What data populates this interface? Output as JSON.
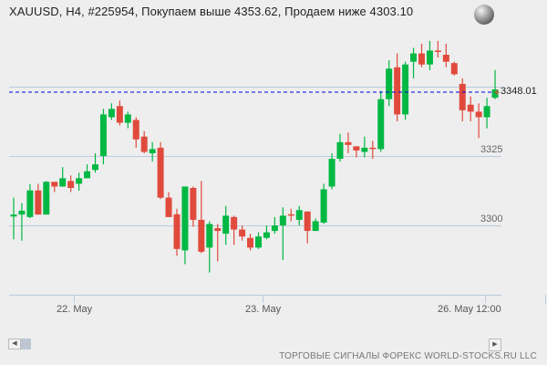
{
  "header": {
    "title": "XAUUSD, H4, #225954, Покупаем выше 4353.62, Продаем ниже 4303.10",
    "globe_icon": "globe-icon"
  },
  "y_axis": {
    "labels": [
      {
        "text": "3325",
        "value": 3325
      },
      {
        "text": "3300",
        "value": 3300
      }
    ]
  },
  "x_axis": {
    "labels": [
      {
        "text": "22. May"
      },
      {
        "text": "23. May"
      },
      {
        "text": "26. May 12:00"
      }
    ]
  },
  "current_price": {
    "text": "3348.01",
    "value": 3348.01
  },
  "footer": {
    "text": "ТОРГОВЫЕ СИГНАЛЫ ФОРЕКС WORLD-STOCKS.RU LLC"
  },
  "scrollbar": {
    "left_icon": "scroll-left-icon",
    "right_icon": "scroll-right-icon"
  },
  "colors": {
    "up": "#00b843",
    "down": "#e04a3c",
    "grid": "#bccbdb",
    "price_line": "#0000dd"
  },
  "chart_data": {
    "type": "candlestick",
    "title": "XAUUSD, H4, #225954, Покупаем выше 4353.62, Продаем ниже 4303.10",
    "xlabel": "",
    "ylabel": "",
    "ylim": [
      3275,
      3357
    ],
    "grid": true,
    "y_ticks": [
      3300,
      3325,
      3350
    ],
    "x_ticks": [
      "22. May",
      "23. May",
      "26. May 12:00"
    ],
    "current_price": 3348.01,
    "candles": [
      {
        "o": 3303.2,
        "c": 3303.9,
        "h": 3310.0,
        "l": 3295.0
      },
      {
        "o": 3303.9,
        "c": 3305.3,
        "h": 3308.0,
        "l": 3294.5
      },
      {
        "o": 3303.0,
        "c": 3312.6,
        "h": 3314.9,
        "l": 3302.6
      },
      {
        "o": 3312.6,
        "c": 3303.9,
        "h": 3315.0,
        "l": 3303.9
      },
      {
        "o": 3303.9,
        "c": 3315.7,
        "h": 3316.0,
        "l": 3303.9
      },
      {
        "o": 3315.7,
        "c": 3314.0,
        "h": 3315.7,
        "l": 3312.0
      },
      {
        "o": 3314.0,
        "c": 3317.0,
        "h": 3321.0,
        "l": 3314.0
      },
      {
        "o": 3316.0,
        "c": 3313.5,
        "h": 3318.0,
        "l": 3312.0
      },
      {
        "o": 3315.0,
        "c": 3317.0,
        "h": 3319.0,
        "l": 3312.5
      },
      {
        "o": 3317.0,
        "c": 3319.5,
        "h": 3322.0,
        "l": 3317.0
      },
      {
        "o": 3320.0,
        "c": 3322.0,
        "h": 3326.0,
        "l": 3319.0
      },
      {
        "o": 3325.0,
        "c": 3340.0,
        "h": 3342.0,
        "l": 3322.0
      },
      {
        "o": 3339.0,
        "c": 3342.0,
        "h": 3344.0,
        "l": 3338.0
      },
      {
        "o": 3343.0,
        "c": 3337.0,
        "h": 3345.0,
        "l": 3336.0
      },
      {
        "o": 3337.0,
        "c": 3340.0,
        "h": 3341.0,
        "l": 3335.0
      },
      {
        "o": 3338.0,
        "c": 3331.0,
        "h": 3339.0,
        "l": 3328.0
      },
      {
        "o": 3332.0,
        "c": 3326.5,
        "h": 3334.0,
        "l": 3326.0
      },
      {
        "o": 3326.0,
        "c": 3327.5,
        "h": 3330.0,
        "l": 3323.0
      },
      {
        "o": 3328.0,
        "c": 3310.0,
        "h": 3330.0,
        "l": 3309.5
      },
      {
        "o": 3310.0,
        "c": 3303.0,
        "h": 3312.0,
        "l": 3303.0
      },
      {
        "o": 3304.0,
        "c": 3291.5,
        "h": 3306.0,
        "l": 3289.0
      },
      {
        "o": 3291.0,
        "c": 3314.0,
        "h": 3314.0,
        "l": 3286.0
      },
      {
        "o": 3313.5,
        "c": 3302.0,
        "h": 3314.0,
        "l": 3299.5
      },
      {
        "o": 3302.0,
        "c": 3290.5,
        "h": 3316.0,
        "l": 3290.0
      },
      {
        "o": 3292.0,
        "c": 3300.5,
        "h": 3301.5,
        "l": 3283.0
      },
      {
        "o": 3299.0,
        "c": 3298.0,
        "h": 3300.5,
        "l": 3287.0
      },
      {
        "o": 3297.0,
        "c": 3303.5,
        "h": 3307.0,
        "l": 3293.0
      },
      {
        "o": 3303.0,
        "c": 3298.5,
        "h": 3303.5,
        "l": 3293.0
      },
      {
        "o": 3298.5,
        "c": 3296.0,
        "h": 3300.0,
        "l": 3294.5
      },
      {
        "o": 3295.5,
        "c": 3292.0,
        "h": 3297.0,
        "l": 3291.0
      },
      {
        "o": 3292.0,
        "c": 3296.0,
        "h": 3297.5,
        "l": 3291.5
      },
      {
        "o": 3295.5,
        "c": 3297.5,
        "h": 3300.0,
        "l": 3295.0
      },
      {
        "o": 3298.0,
        "c": 3300.0,
        "h": 3303.0,
        "l": 3297.0
      },
      {
        "o": 3300.0,
        "c": 3303.5,
        "h": 3306.5,
        "l": 3287.5
      },
      {
        "o": 3304.0,
        "c": 3303.5,
        "h": 3306.0,
        "l": 3301.5
      },
      {
        "o": 3302.0,
        "c": 3305.5,
        "h": 3307.0,
        "l": 3300.0
      },
      {
        "o": 3305.0,
        "c": 3298.0,
        "h": 3305.0,
        "l": 3293.5
      },
      {
        "o": 3298.0,
        "c": 3301.5,
        "h": 3302.5,
        "l": 3298.0
      },
      {
        "o": 3301.0,
        "c": 3313.0,
        "h": 3315.0,
        "l": 3300.5
      },
      {
        "o": 3314.0,
        "c": 3324.0,
        "h": 3326.0,
        "l": 3313.0
      },
      {
        "o": 3324.0,
        "c": 3330.0,
        "h": 3333.0,
        "l": 3323.0
      },
      {
        "o": 3330.0,
        "c": 3329.0,
        "h": 3333.5,
        "l": 3326.0
      },
      {
        "o": 3328.5,
        "c": 3327.0,
        "h": 3328.5,
        "l": 3324.5
      },
      {
        "o": 3326.5,
        "c": 3328.0,
        "h": 3332.0,
        "l": 3324.5
      },
      {
        "o": 3328.0,
        "c": 3327.5,
        "h": 3330.5,
        "l": 3324.0
      },
      {
        "o": 3327.5,
        "c": 3345.5,
        "h": 3348.5,
        "l": 3326.5
      },
      {
        "o": 3345.5,
        "c": 3356.5,
        "h": 3359.5,
        "l": 3343.0
      },
      {
        "o": 3357.0,
        "c": 3340.0,
        "h": 3362.0,
        "l": 3337.5
      },
      {
        "o": 3340.0,
        "c": 3358.0,
        "h": 3359.0,
        "l": 3338.0
      },
      {
        "o": 3359.0,
        "c": 3362.0,
        "h": 3364.0,
        "l": 3353.0
      },
      {
        "o": 3362.0,
        "c": 3358.0,
        "h": 3365.5,
        "l": 3357.0
      },
      {
        "o": 3358.0,
        "c": 3363.0,
        "h": 3366.5,
        "l": 3356.0
      },
      {
        "o": 3363.0,
        "c": 3362.5,
        "h": 3366.5,
        "l": 3360.5
      },
      {
        "o": 3361.5,
        "c": 3359.0,
        "h": 3365.5,
        "l": 3357.0
      },
      {
        "o": 3358.5,
        "c": 3354.5,
        "h": 3359.0,
        "l": 3354.0
      },
      {
        "o": 3351.0,
        "c": 3341.5,
        "h": 3353.0,
        "l": 3337.5
      },
      {
        "o": 3343.5,
        "c": 3341.0,
        "h": 3346.5,
        "l": 3337.5
      },
      {
        "o": 3341.0,
        "c": 3339.0,
        "h": 3344.0,
        "l": 3331.5
      },
      {
        "o": 3339.0,
        "c": 3343.0,
        "h": 3346.0,
        "l": 3335.0
      },
      {
        "o": 3346.0,
        "c": 3349.0,
        "h": 3356.0,
        "l": 3345.5
      }
    ]
  }
}
